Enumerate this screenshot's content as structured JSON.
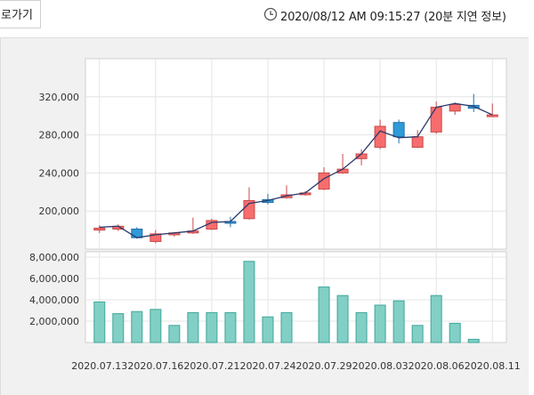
{
  "header": {
    "back_label": "로가기",
    "timestamp": "2020/08/12 AM 09:15:27 (20분 지연 정보)"
  },
  "colors": {
    "up": "#f76d6d",
    "up_border": "#c94848",
    "down": "#2f9ad8",
    "down_border": "#1f6fa8",
    "volume": "#82cfc5",
    "volume_border": "#3ea79a",
    "ma_line": "#2b3a6b"
  },
  "chart_data": {
    "type": "candlestick",
    "title": "",
    "price_ticks": [
      200000,
      240000,
      280000,
      320000
    ],
    "price_tick_labels": [
      "200,000",
      "240,000",
      "280,000",
      "320,000"
    ],
    "price_ylim": [
      160000,
      360000
    ],
    "volume_ticks": [
      2000000,
      4000000,
      6000000,
      8000000
    ],
    "volume_tick_labels": [
      "2,000,000",
      "4,000,000",
      "6,000,000",
      "8,000,000"
    ],
    "volume_ylim": [
      0,
      8500000
    ],
    "x_tick_labels": [
      "2020.07.13",
      "2020.07.16",
      "2020.07.21",
      "2020.07.24",
      "2020.07.29",
      "2020.08.03",
      "2020.08.06",
      "2020.08.11"
    ],
    "x_tick_indices": [
      0,
      3,
      6,
      9,
      12,
      15,
      18,
      21
    ],
    "grid": true,
    "candles": [
      {
        "o": 180000,
        "h": 185000,
        "l": 177000,
        "c": 182000
      },
      {
        "o": 181000,
        "h": 186000,
        "l": 179000,
        "c": 184000
      },
      {
        "o": 181000,
        "h": 183000,
        "l": 171000,
        "c": 172000
      },
      {
        "o": 168000,
        "h": 180000,
        "l": 166000,
        "c": 176000
      },
      {
        "o": 175000,
        "h": 178000,
        "l": 173000,
        "c": 177000
      },
      {
        "o": 177000,
        "h": 193000,
        "l": 176000,
        "c": 179000
      },
      {
        "o": 181000,
        "h": 192000,
        "l": 180000,
        "c": 190000
      },
      {
        "o": 189000,
        "h": 194000,
        "l": 183000,
        "c": 188000
      },
      {
        "o": 192000,
        "h": 225000,
        "l": 191000,
        "c": 211000
      },
      {
        "o": 212000,
        "h": 218000,
        "l": 207000,
        "c": 209000
      },
      {
        "o": 214000,
        "h": 227000,
        "l": 213000,
        "c": 217000
      },
      {
        "o": 218000,
        "h": 221000,
        "l": 216000,
        "c": 219000
      },
      {
        "o": 223000,
        "h": 246000,
        "l": 222000,
        "c": 240000
      },
      {
        "o": 240000,
        "h": 260000,
        "l": 239000,
        "c": 244000
      },
      {
        "o": 255000,
        "h": 265000,
        "l": 248000,
        "c": 260000
      },
      {
        "o": 267000,
        "h": 296000,
        "l": 265000,
        "c": 289000
      },
      {
        "o": 293000,
        "h": 296000,
        "l": 271000,
        "c": 278000
      },
      {
        "o": 267000,
        "h": 285000,
        "l": 266000,
        "c": 278000
      },
      {
        "o": 283000,
        "h": 315000,
        "l": 281000,
        "c": 309000
      },
      {
        "o": 305000,
        "h": 314000,
        "l": 301000,
        "c": 312000
      },
      {
        "o": 311000,
        "h": 323000,
        "l": 304000,
        "c": 308000
      },
      {
        "o": 300000,
        "h": 313000,
        "l": 299000,
        "c": 301000
      }
    ],
    "moving_average": [
      183000,
      184000,
      172000,
      175000,
      177000,
      179000,
      188000,
      189000,
      208000,
      211000,
      216000,
      219000,
      234000,
      244000,
      260000,
      284000,
      277000,
      278000,
      309000,
      313000,
      310000,
      301000
    ],
    "volumes": [
      3800000,
      2700000,
      2900000,
      3100000,
      1600000,
      2800000,
      2800000,
      2800000,
      7600000,
      2400000,
      2800000,
      0,
      5200000,
      4400000,
      2800000,
      3500000,
      3900000,
      1600000,
      4400000,
      1800000,
      300000,
      0
    ]
  }
}
